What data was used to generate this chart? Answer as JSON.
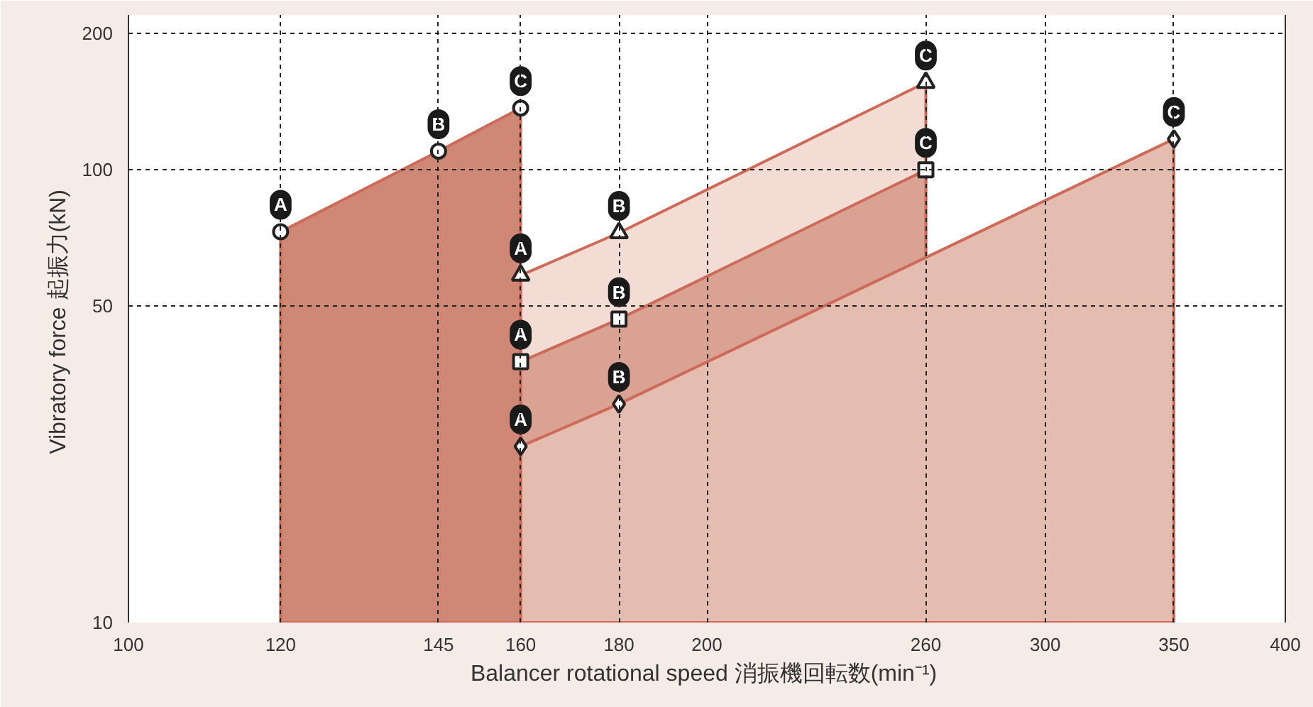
{
  "chart_data": {
    "type": "area",
    "xlabel": "Balancer rotational speed  消振機回転数(min⁻¹)",
    "ylabel": "Vibratory force  起振力(kN)",
    "log": "xy",
    "xlim": [
      100,
      400
    ],
    "ylim": [
      10,
      220
    ],
    "xticks": [
      100,
      120,
      145,
      160,
      180,
      200,
      260,
      300,
      350,
      400
    ],
    "yticks": [
      10,
      50,
      100,
      200
    ],
    "grid": true,
    "line_style": "solid",
    "series": [
      {
        "color": "#f3dcd4",
        "marker": "triangle",
        "x": [
          160,
          180,
          260
        ],
        "values": [
          58.5,
          72.6,
          156
        ]
      },
      {
        "color": "#d9a293",
        "marker": "square",
        "x": [
          160,
          180,
          260
        ],
        "values": [
          37.7,
          46.8,
          100
        ]
      },
      {
        "color": "#e5bcb0",
        "marker": "diamond",
        "x": [
          160,
          180,
          350
        ],
        "values": [
          24.5,
          30.4,
          117
        ]
      },
      {
        "color": "#cf8875",
        "marker": "circle",
        "x": [
          120,
          145,
          160
        ],
        "values": [
          73,
          110,
          137
        ]
      }
    ],
    "annotations": [
      {
        "text": "A",
        "x": 120,
        "y": 73
      },
      {
        "text": "B",
        "x": 145,
        "y": 110
      },
      {
        "text": "C",
        "x": 160,
        "y": 137
      },
      {
        "text": "A",
        "x": 160,
        "y": 58.5
      },
      {
        "text": "B",
        "x": 180,
        "y": 72.6
      },
      {
        "text": "C",
        "x": 260,
        "y": 156
      },
      {
        "text": "A",
        "x": 160,
        "y": 37.7
      },
      {
        "text": "B",
        "x": 180,
        "y": 46.8
      },
      {
        "text": "C",
        "x": 260,
        "y": 100
      },
      {
        "text": "A",
        "x": 160,
        "y": 24.5
      },
      {
        "text": "B",
        "x": 180,
        "y": 30.4
      },
      {
        "text": "C",
        "x": 350,
        "y": 117
      }
    ]
  }
}
